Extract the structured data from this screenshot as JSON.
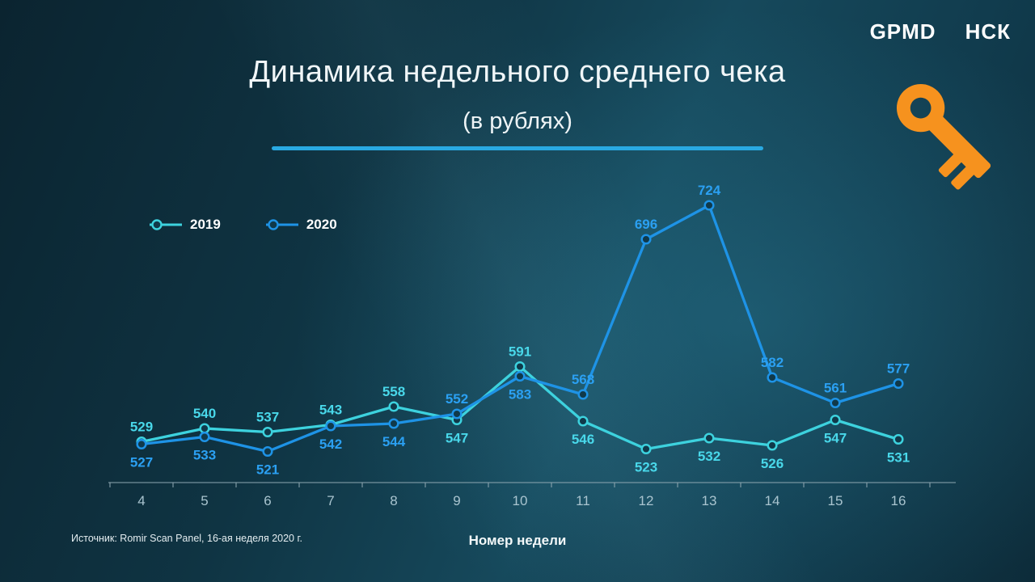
{
  "brand": {
    "gpmd": "GPMD",
    "nsk": "НСК"
  },
  "title": "Динамика недельного среднего чека",
  "subtitle": "(в рублях)",
  "divider_color": "#29A9E2",
  "key_icon_color": "#F6921E",
  "source": "Источник: Romir Scan Panel, 16-ая неделя 2020 г.",
  "chart_data": {
    "type": "line",
    "x": [
      4,
      5,
      6,
      7,
      8,
      9,
      10,
      11,
      12,
      13,
      14,
      15,
      16
    ],
    "xlabel": "Номер недели",
    "ylabel": "",
    "ylim": [
      500,
      750
    ],
    "grid": false,
    "legend_position": "top-left",
    "axis_color": "#8FA8B2",
    "tick_color": "#A9C4CF",
    "marker_fill": "#10394A",
    "series": [
      {
        "name": "2019",
        "color": "#3DD2DE",
        "label_color": "#49D8EA",
        "values": [
          529,
          540,
          537,
          543,
          558,
          547,
          591,
          546,
          523,
          532,
          526,
          547,
          531
        ]
      },
      {
        "name": "2020",
        "color": "#1E93E6",
        "label_color": "#2BA0F2",
        "values": [
          527,
          533,
          521,
          542,
          544,
          552,
          583,
          568,
          696,
          724,
          582,
          561,
          577
        ]
      }
    ]
  }
}
